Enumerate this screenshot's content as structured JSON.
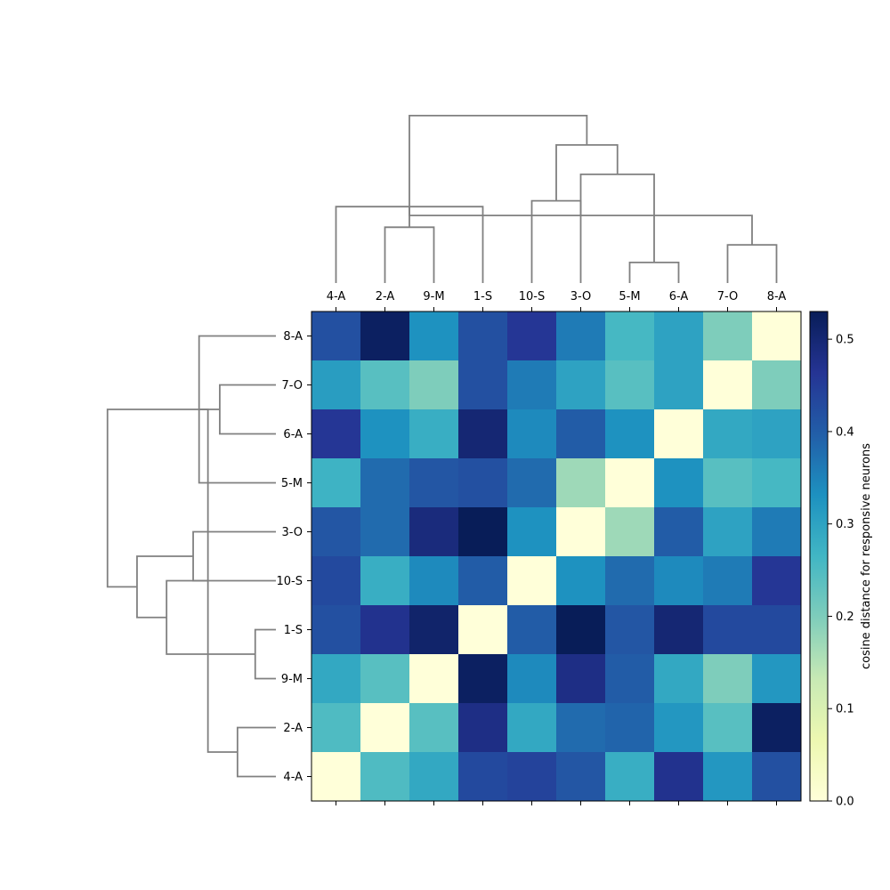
{
  "chart_data": {
    "type": "heatmap",
    "x_labels": [
      "4-A",
      "2-A",
      "9-M",
      "1-S",
      "10-S",
      "3-O",
      "5-M",
      "6-A",
      "7-O",
      "8-A"
    ],
    "y_labels": [
      "8-A",
      "7-O",
      "6-A",
      "5-M",
      "3-O",
      "10-S",
      "1-S",
      "9-M",
      "2-A",
      "4-A"
    ],
    "values": [
      [
        0.42,
        0.52,
        0.33,
        0.42,
        0.46,
        0.36,
        0.26,
        0.3,
        0.2,
        0.0
      ],
      [
        0.31,
        0.24,
        0.2,
        0.42,
        0.36,
        0.3,
        0.24,
        0.3,
        0.0,
        0.2
      ],
      [
        0.46,
        0.33,
        0.28,
        0.5,
        0.34,
        0.4,
        0.33,
        0.0,
        0.29,
        0.3
      ],
      [
        0.27,
        0.38,
        0.41,
        0.42,
        0.38,
        0.17,
        0.0,
        0.33,
        0.24,
        0.26
      ],
      [
        0.41,
        0.38,
        0.49,
        0.53,
        0.33,
        0.0,
        0.17,
        0.4,
        0.3,
        0.36
      ],
      [
        0.43,
        0.28,
        0.34,
        0.4,
        0.0,
        0.33,
        0.38,
        0.34,
        0.36,
        0.46
      ],
      [
        0.42,
        0.47,
        0.51,
        0.0,
        0.4,
        0.53,
        0.41,
        0.5,
        0.43,
        0.43
      ],
      [
        0.29,
        0.24,
        0.0,
        0.52,
        0.34,
        0.48,
        0.4,
        0.29,
        0.2,
        0.32
      ],
      [
        0.25,
        0.0,
        0.24,
        0.48,
        0.29,
        0.38,
        0.39,
        0.32,
        0.24,
        0.52
      ],
      [
        0.0,
        0.25,
        0.29,
        0.43,
        0.44,
        0.41,
        0.28,
        0.47,
        0.32,
        0.42
      ]
    ],
    "colorbar": {
      "label": "cosine distance for responsive neurons",
      "min": 0.0,
      "max": 0.53,
      "ticks": [
        0.0,
        0.1,
        0.2,
        0.3,
        0.4,
        0.5
      ],
      "tick_labels": [
        "0.0",
        "0.1",
        "0.2",
        "0.3",
        "0.4",
        "0.5"
      ],
      "colormap": "YlGnBu",
      "colormap_stops": [
        "#ffffd9",
        "#edf8b1",
        "#c7e9b4",
        "#7fcdbb",
        "#41b6c4",
        "#1d91c0",
        "#225ea8",
        "#253494",
        "#081d58"
      ]
    },
    "dendrogram_color": "#808080",
    "col_dendrogram": [
      {
        "left": 2,
        "right": 1,
        "height": 0.19
      },
      {
        "left": 3,
        "right": 0,
        "height": 0.26
      },
      {
        "left": 4,
        "right": 5,
        "height": 0.28
      },
      {
        "left": 6,
        "right": 7,
        "height": 0.07
      },
      {
        "left": 8,
        "right": 9,
        "height": 0.13
      },
      {
        "left": 11,
        "right": 14,
        "height": 0.23
      },
      {
        "left": 13,
        "right": 15,
        "height": 0.37
      },
      {
        "left": 12,
        "right": 16,
        "height": 0.47
      },
      {
        "left": 10,
        "right": 17,
        "height": 0.57
      }
    ],
    "row_dendrogram": [
      {
        "left": 2,
        "right": 1,
        "height": 0.19
      },
      {
        "left": 3,
        "right": 0,
        "height": 0.26
      },
      {
        "left": 4,
        "right": 5,
        "height": 0.28
      },
      {
        "left": 6,
        "right": 7,
        "height": 0.07
      },
      {
        "left": 8,
        "right": 9,
        "height": 0.13
      },
      {
        "left": 11,
        "right": 14,
        "height": 0.23
      },
      {
        "left": 13,
        "right": 15,
        "height": 0.37
      },
      {
        "left": 12,
        "right": 16,
        "height": 0.47
      },
      {
        "left": 10,
        "right": 17,
        "height": 0.57
      }
    ]
  }
}
